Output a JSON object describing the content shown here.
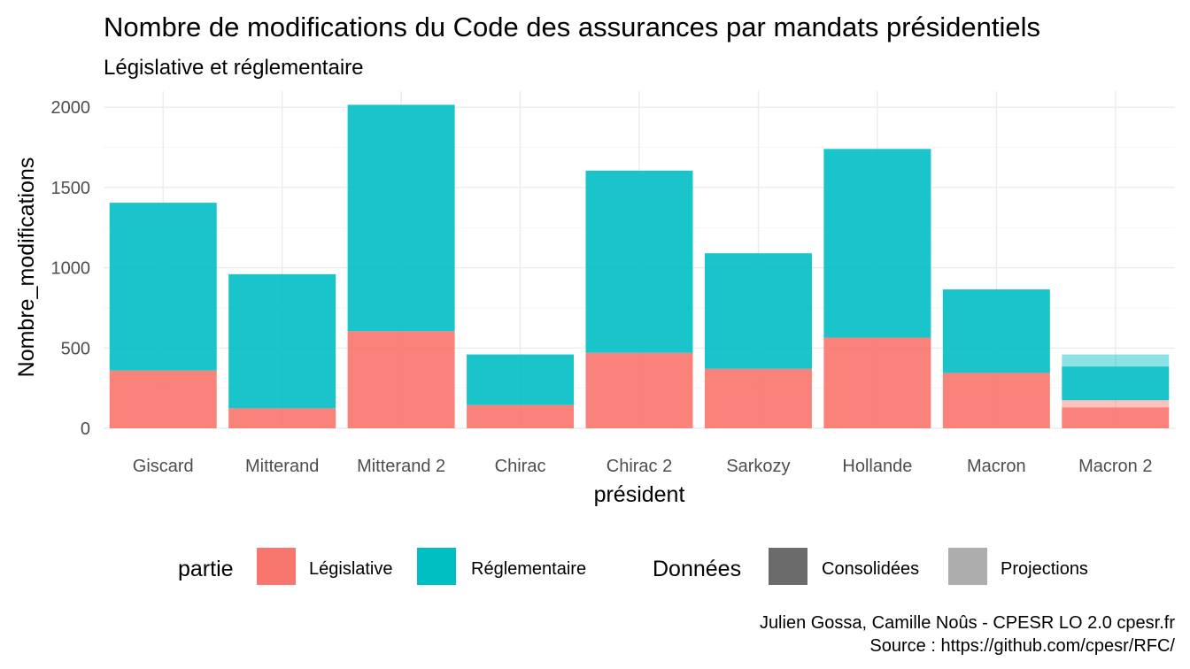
{
  "chart_data": {
    "type": "bar",
    "stacked": true,
    "title": "Nombre de modifications du Code des assurances par mandats présidentiels",
    "subtitle": "Législative et réglementaire",
    "xlabel": "président",
    "ylabel": "Nombre_modifications",
    "ylim": [
      0,
      2100
    ],
    "yticks": [
      0,
      500,
      1000,
      1500,
      2000
    ],
    "grid": true,
    "categories": [
      "Giscard",
      "Mitterand",
      "Mitterand 2",
      "Chirac",
      "Chirac 2",
      "Sarkozy",
      "Hollande",
      "Macron",
      "Macron 2"
    ],
    "series": [
      {
        "name": "Législative",
        "color": "#F8766D",
        "consolidees": [
          360,
          125,
          605,
          145,
          470,
          370,
          565,
          345,
          130
        ],
        "projections": [
          0,
          0,
          0,
          0,
          0,
          0,
          0,
          0,
          45
        ]
      },
      {
        "name": "Réglementaire",
        "color": "#00BFC4",
        "consolidees": [
          1045,
          835,
          1410,
          315,
          1135,
          720,
          1175,
          520,
          210
        ],
        "projections": [
          0,
          0,
          0,
          0,
          0,
          0,
          0,
          0,
          75
        ]
      }
    ],
    "legend": {
      "position": "bottom",
      "partie": {
        "title": "partie",
        "items": [
          {
            "label": "Législative",
            "color": "#F8766D"
          },
          {
            "label": "Réglementaire",
            "color": "#00BFC4"
          }
        ]
      },
      "donnees": {
        "title": "Données",
        "items": [
          {
            "label": "Consolidées",
            "color": "#6b6b6b"
          },
          {
            "label": "Projections",
            "color": "#adadad"
          }
        ]
      }
    },
    "caption": [
      "Julien Gossa, Camille Noûs - CPESR LO 2.0 cpesr.fr",
      "Source : https://github.com/cpesr/RFC/"
    ]
  }
}
